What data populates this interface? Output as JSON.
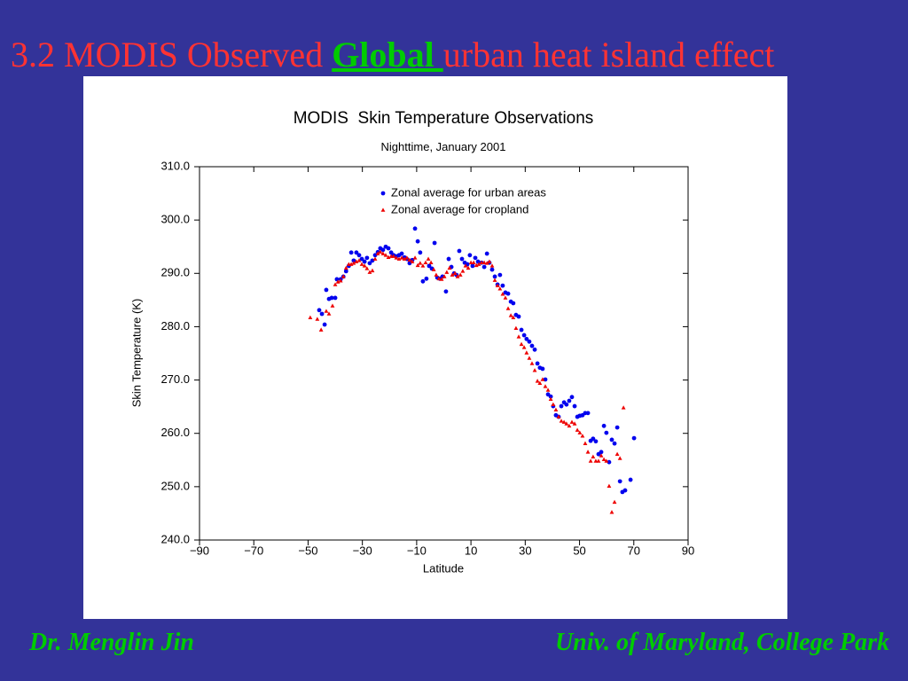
{
  "header": {
    "title_before": "3.2 MODIS Observed ",
    "title_emphasis": "Global ",
    "title_after": "urban heat island effect"
  },
  "footer": {
    "author": "Dr. Menglin Jin",
    "affiliation": "Univ. of Maryland, College Park"
  },
  "chart_data": {
    "type": "scatter",
    "title": "MODIS  Skin Temperature Observations",
    "subtitle": "Nighttime, January 2001",
    "xlabel": "Latitude",
    "ylabel": "Skin Temperature (K)",
    "xlim": [
      -90,
      90
    ],
    "xticks": [
      {
        "value": -90,
        "label": "−90"
      },
      {
        "value": -70,
        "label": "−70"
      },
      {
        "value": -50,
        "label": "−50"
      },
      {
        "value": -30,
        "label": "−30"
      },
      {
        "value": -10,
        "label": "−10"
      },
      10,
      30,
      50,
      70,
      90
    ],
    "ylim": [
      240,
      310
    ],
    "yticks": [
      {
        "value": 240,
        "label": "240.0"
      },
      {
        "value": 250,
        "label": "250.0"
      },
      {
        "value": 260,
        "label": "260.0"
      },
      {
        "value": 270,
        "label": "270.0"
      },
      {
        "value": 280,
        "label": "280.0"
      },
      {
        "value": 290,
        "label": "290.0"
      },
      {
        "value": 300,
        "label": "300.0"
      },
      {
        "value": 310,
        "label": "310.0"
      }
    ],
    "legend": "upper center",
    "series": [
      {
        "name": "Zonal average for urban areas",
        "color": "#0000ee",
        "marker": "circle",
        "x": [
          -45.9,
          -44.9,
          -43.9,
          -43.3,
          -42.3,
          -41.3,
          -40.0,
          -39.4,
          -38.0,
          -37.0,
          -36.0,
          -35.0,
          -34.1,
          -33.2,
          -32.2,
          -31.2,
          -30.2,
          -29.2,
          -28.3,
          -27.3,
          -26.3,
          -25.3,
          -24.3,
          -23.4,
          -22.4,
          -21.4,
          -20.4,
          -19.4,
          -18.5,
          -17.5,
          -16.5,
          -15.5,
          -14.5,
          -13.6,
          -12.6,
          -11.6,
          -10.6,
          -9.6,
          -8.7,
          -7.7,
          -6.4,
          -5.4,
          -4.4,
          -3.4,
          -2.4,
          -1.5,
          -0.5,
          0.8,
          1.8,
          2.8,
          3.8,
          4.7,
          5.7,
          6.7,
          7.7,
          8.7,
          9.6,
          10.6,
          11.6,
          12.6,
          13.9,
          14.9,
          15.9,
          16.8,
          17.8,
          18.8,
          19.8,
          20.7,
          21.7,
          22.7,
          23.7,
          24.7,
          25.6,
          26.6,
          27.6,
          28.6,
          29.6,
          30.5,
          31.5,
          32.5,
          33.5,
          34.5,
          35.4,
          36.4,
          37.4,
          38.4,
          39.4,
          40.3,
          41.3,
          42.3,
          43.3,
          44.3,
          45.2,
          46.2,
          47.2,
          48.2,
          49.2,
          50.1,
          51.1,
          52.1,
          53.1,
          54.1,
          55.0,
          56.0,
          57.0,
          58.0,
          59.0,
          59.9,
          60.9,
          61.9,
          62.9,
          63.9,
          64.9,
          65.8,
          66.8,
          68.8,
          70.1
        ],
        "values": [
          283.1,
          282.4,
          280.4,
          286.9,
          285.2,
          285.4,
          285.4,
          288.9,
          288.9,
          289.4,
          290.4,
          291.4,
          293.9,
          292.4,
          293.9,
          293.4,
          292.7,
          292.2,
          292.9,
          291.9,
          292.4,
          293.4,
          294.0,
          294.7,
          294.4,
          295.0,
          294.7,
          293.9,
          293.4,
          293.2,
          293.4,
          293.7,
          293.0,
          292.7,
          291.9,
          292.5,
          298.4,
          296.0,
          293.9,
          288.5,
          289.0,
          291.4,
          290.9,
          295.7,
          289.2,
          289.0,
          289.4,
          286.6,
          292.7,
          291.2,
          290.0,
          289.7,
          294.2,
          292.7,
          292.0,
          291.7,
          293.4,
          291.4,
          292.9,
          292.2,
          292.0,
          291.2,
          293.7,
          292.0,
          290.7,
          289.4,
          287.9,
          289.7,
          287.7,
          286.4,
          286.2,
          284.7,
          284.4,
          282.2,
          281.9,
          279.4,
          278.4,
          277.7,
          277.2,
          276.4,
          275.7,
          273.1,
          272.3,
          272.1,
          270.1,
          267.3,
          266.9,
          265.1,
          263.4,
          263.1,
          265.1,
          265.8,
          265.4,
          266.1,
          266.8,
          265.1,
          263.1,
          263.3,
          263.4,
          263.8,
          263.8,
          258.6,
          259.0,
          258.5,
          256.1,
          256.5,
          261.4,
          260.1,
          254.6,
          258.8,
          258.1,
          261.1,
          251.0,
          249.0,
          249.3,
          251.3,
          259.1
        ]
      },
      {
        "name": "Zonal average for cropland",
        "color": "#ee0000",
        "marker": "triangle",
        "x": [
          -49.2,
          -46.6,
          -45.2,
          -43.3,
          -42.3,
          -41.0,
          -40.0,
          -39.0,
          -38.0,
          -37.0,
          -36.0,
          -35.0,
          -34.1,
          -33.2,
          -32.2,
          -31.2,
          -30.2,
          -29.2,
          -28.3,
          -27.3,
          -26.3,
          -25.3,
          -24.3,
          -23.4,
          -22.4,
          -21.4,
          -20.4,
          -19.4,
          -18.5,
          -17.5,
          -16.5,
          -15.5,
          -14.5,
          -13.6,
          -12.6,
          -11.6,
          -10.6,
          -9.6,
          -8.7,
          -7.7,
          -6.7,
          -5.7,
          -4.7,
          -3.7,
          -2.8,
          -1.8,
          -0.8,
          0.2,
          1.1,
          2.1,
          3.1,
          4.1,
          5.1,
          6.1,
          7.0,
          8.0,
          9.0,
          10.0,
          11.0,
          12.0,
          12.9,
          13.9,
          14.9,
          15.9,
          16.8,
          17.8,
          18.8,
          19.8,
          20.7,
          21.7,
          22.7,
          23.7,
          24.7,
          25.6,
          26.6,
          27.6,
          28.6,
          29.6,
          30.5,
          31.5,
          32.5,
          33.5,
          34.5,
          35.4,
          36.4,
          37.4,
          38.4,
          39.4,
          40.3,
          41.3,
          42.3,
          43.3,
          44.3,
          45.2,
          46.2,
          47.2,
          48.2,
          49.2,
          50.1,
          51.1,
          52.1,
          53.1,
          54.1,
          55.0,
          56.0,
          57.0,
          58.0,
          59.0,
          59.9,
          60.9,
          61.9,
          62.9,
          63.9,
          64.9,
          66.2
        ],
        "values": [
          281.7,
          281.4,
          279.4,
          282.9,
          282.4,
          283.9,
          287.9,
          288.4,
          288.6,
          289.4,
          291.0,
          291.7,
          291.7,
          291.9,
          292.2,
          292.4,
          291.7,
          291.4,
          290.9,
          290.2,
          290.5,
          292.7,
          293.7,
          294.0,
          293.7,
          293.4,
          293.0,
          293.2,
          293.2,
          292.9,
          292.7,
          292.9,
          292.7,
          292.9,
          292.5,
          292.2,
          292.9,
          291.5,
          291.9,
          291.4,
          292.0,
          292.7,
          292.0,
          290.7,
          289.7,
          289.0,
          288.9,
          289.4,
          290.2,
          291.0,
          289.7,
          290.0,
          289.4,
          289.7,
          290.4,
          291.4,
          291.0,
          292.0,
          292.0,
          291.5,
          291.7,
          292.0,
          292.0,
          291.9,
          292.2,
          291.4,
          288.7,
          287.7,
          287.1,
          286.1,
          285.4,
          283.4,
          282.1,
          281.7,
          279.7,
          278.1,
          276.7,
          276.1,
          275.1,
          274.1,
          273.1,
          271.8,
          269.8,
          269.4,
          270.1,
          268.8,
          268.1,
          266.4,
          265.4,
          264.4,
          263.1,
          262.3,
          262.1,
          261.8,
          261.4,
          262.1,
          261.8,
          260.6,
          260.1,
          259.5,
          258.1,
          256.5,
          254.8,
          255.6,
          254.8,
          254.8,
          255.8,
          255.1,
          254.8,
          250.1,
          245.2,
          247.1,
          256.1,
          255.3,
          264.8
        ]
      }
    ]
  }
}
